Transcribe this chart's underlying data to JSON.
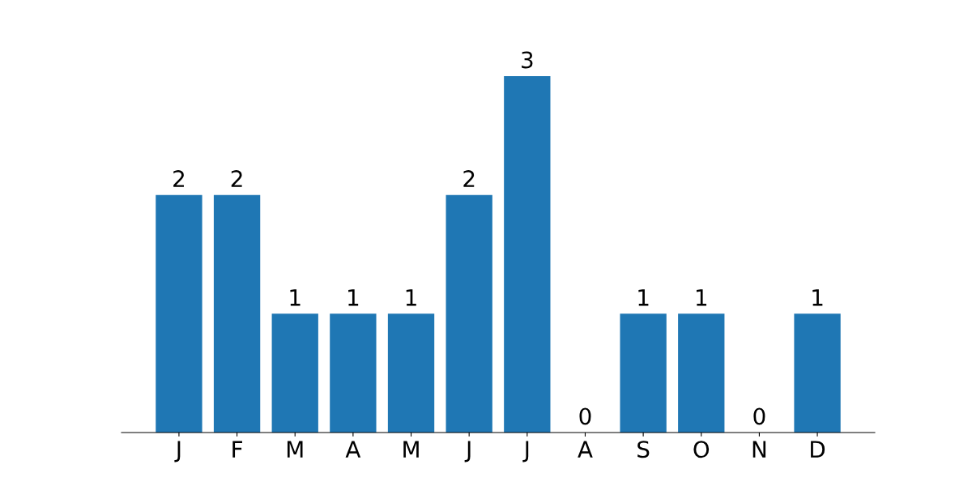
{
  "chart_data": {
    "type": "bar",
    "categories": [
      "J",
      "F",
      "M",
      "A",
      "M",
      "J",
      "J",
      "A",
      "S",
      "O",
      "N",
      "D"
    ],
    "values": [
      2,
      2,
      1,
      1,
      1,
      2,
      3,
      0,
      1,
      1,
      0,
      1
    ],
    "color": "#1f77b4",
    "data_labels": true,
    "grid": false,
    "legend": false,
    "tick_labels": "x"
  }
}
